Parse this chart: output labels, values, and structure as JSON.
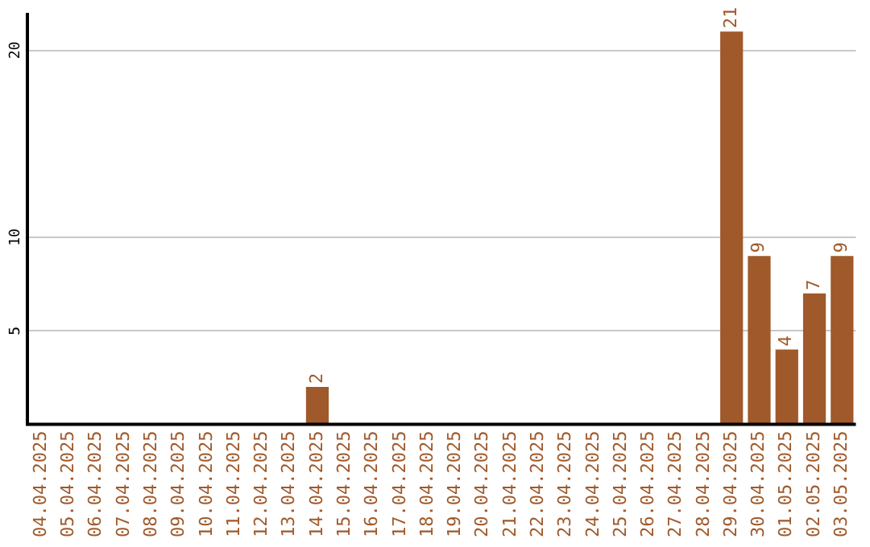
{
  "chart_data": {
    "type": "bar",
    "categories": [
      "04.04.2025",
      "05.04.2025",
      "06.04.2025",
      "07.04.2025",
      "08.04.2025",
      "09.04.2025",
      "10.04.2025",
      "11.04.2025",
      "12.04.2025",
      "13.04.2025",
      "14.04.2025",
      "15.04.2025",
      "16.04.2025",
      "17.04.2025",
      "18.04.2025",
      "19.04.2025",
      "20.04.2025",
      "21.04.2025",
      "22.04.2025",
      "23.04.2025",
      "24.04.2025",
      "25.04.2025",
      "26.04.2025",
      "27.04.2025",
      "28.04.2025",
      "29.04.2025",
      "30.04.2025",
      "01.05.2025",
      "02.05.2025",
      "03.05.2025"
    ],
    "values": [
      0,
      0,
      0,
      0,
      0,
      0,
      0,
      0,
      0,
      0,
      2,
      0,
      0,
      0,
      0,
      0,
      0,
      0,
      0,
      0,
      0,
      0,
      0,
      0,
      0,
      21,
      9,
      4,
      7,
      9
    ],
    "value_labels": [
      null,
      null,
      null,
      null,
      null,
      null,
      null,
      null,
      null,
      null,
      "2",
      null,
      null,
      null,
      null,
      null,
      null,
      null,
      null,
      null,
      null,
      null,
      null,
      null,
      null,
      "21",
      "9",
      "4",
      "7",
      "9"
    ],
    "color": "#a0592a",
    "ylim": [
      0,
      22
    ],
    "yticks": [
      5,
      10,
      20
    ],
    "grid": "y"
  }
}
